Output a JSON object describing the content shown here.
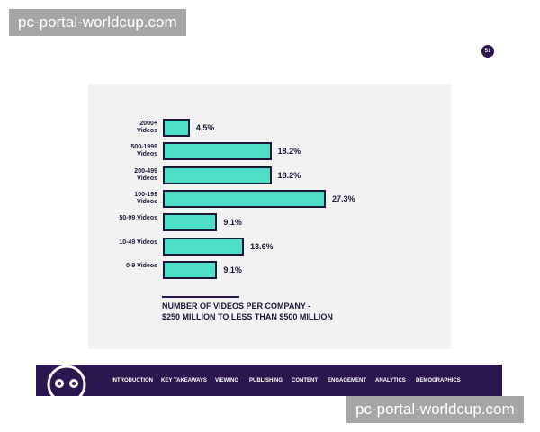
{
  "watermark_top": "pc-portal-worldcup.com",
  "watermark_bottom": "pc-portal-worldcup.com",
  "page_number": "51",
  "chart_data": {
    "type": "bar",
    "orientation": "horizontal",
    "title": "NUMBER OF VIDEOS PER COMPANY -",
    "subtitle": "$250 MILLION TO LESS THAN $500 MILLION",
    "categories": [
      "2000+ Videos",
      "500-1999 Videos",
      "200-499 Videos",
      "100-199 Videos",
      "50-99 Videos",
      "10-49 Videos",
      "0-9 Videos"
    ],
    "values": [
      4.5,
      18.2,
      18.2,
      27.3,
      9.1,
      13.6,
      9.1
    ],
    "value_labels": [
      "4.5%",
      "18.2%",
      "18.2%",
      "27.3%",
      "9.1%",
      "13.6%",
      "9.1%"
    ],
    "color": "#4ee0c6",
    "edge_color": "#1a1836"
  },
  "nav": {
    "items": [
      "INTRODUCTION",
      "KEY TAKEAWAYS",
      "VIEWING",
      "PUBLISHING",
      "CONTENT",
      "ENGAGEMENT",
      "ANALYTICS",
      "DEMOGRAPHICS"
    ]
  }
}
